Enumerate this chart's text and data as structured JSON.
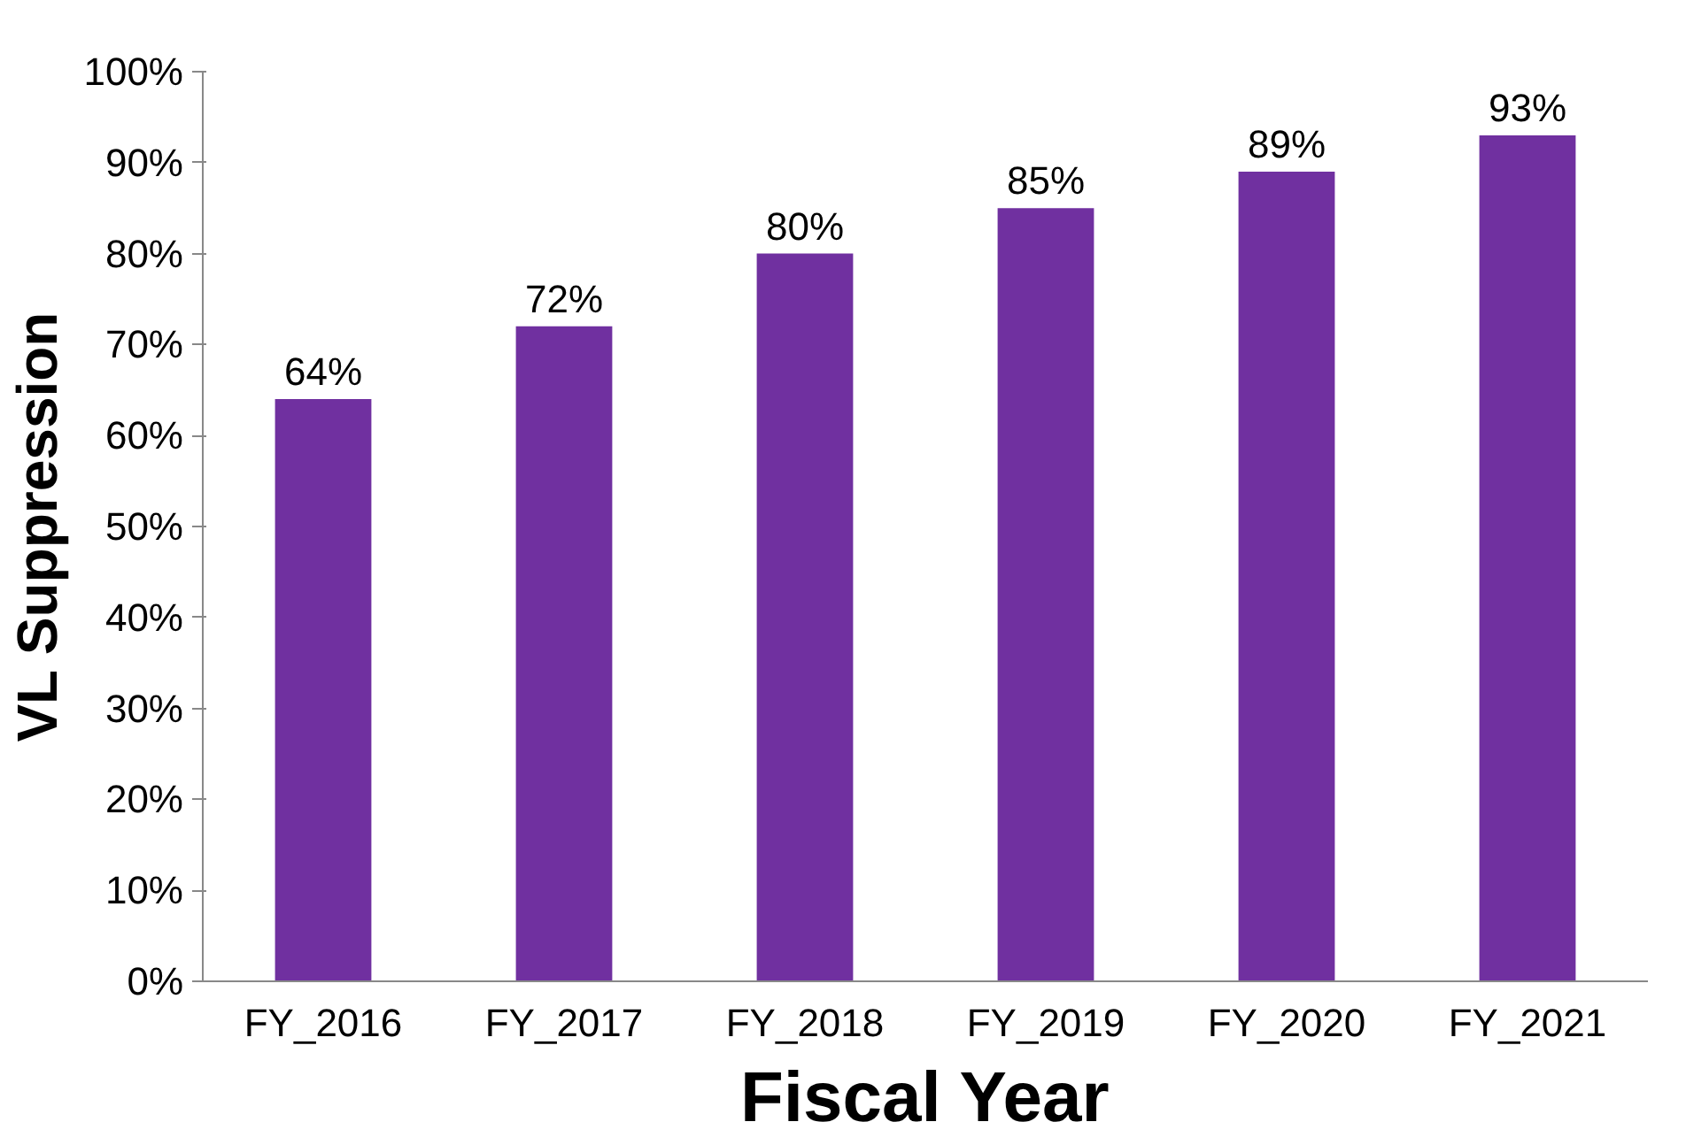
{
  "chart_data": {
    "type": "bar",
    "xlabel": "Fiscal Year",
    "ylabel": "VL Suppression",
    "categories": [
      "FY_2016",
      "FY_2017",
      "FY_2018",
      "FY_2019",
      "FY_2020",
      "FY_2021"
    ],
    "values": [
      64,
      72,
      80,
      85,
      89,
      93
    ],
    "value_labels": [
      "64%",
      "72%",
      "80%",
      "85%",
      "89%",
      "93%"
    ],
    "color": "#7030a0",
    "ylim": [
      0,
      100
    ],
    "yticks": [
      {
        "value": 0,
        "label": "0%"
      },
      {
        "value": 10,
        "label": "10%"
      },
      {
        "value": 20,
        "label": "20%"
      },
      {
        "value": 30,
        "label": "30%"
      },
      {
        "value": 40,
        "label": "40%"
      },
      {
        "value": 50,
        "label": "50%"
      },
      {
        "value": 60,
        "label": "60%"
      },
      {
        "value": 70,
        "label": "70%"
      },
      {
        "value": 80,
        "label": "80%"
      },
      {
        "value": 90,
        "label": "90%"
      },
      {
        "value": 100,
        "label": "100%"
      }
    ],
    "grid": false
  }
}
